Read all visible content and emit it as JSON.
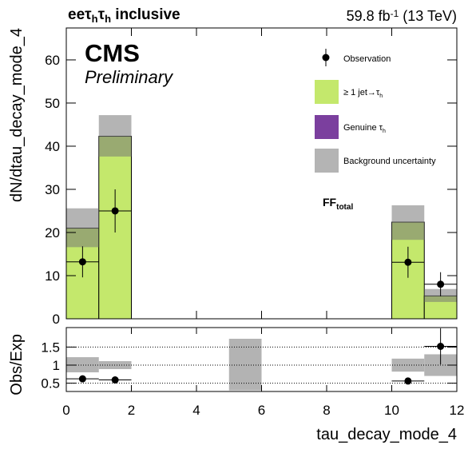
{
  "chart_data": [
    {
      "type": "histogram",
      "title": [
        "eeτ",
        "h",
        "τ",
        "h",
        " inclusive"
      ],
      "lumi": [
        "59.8 fb",
        "-1",
        " (13 TeV)"
      ],
      "logo": "CMS",
      "status": "Preliminary",
      "annotation": [
        "FF",
        "total"
      ],
      "ylabel": "dN/dtau_decay_mode_4",
      "bins": [
        0,
        1,
        2,
        3,
        4,
        5,
        6,
        7,
        8,
        9,
        10,
        11,
        12
      ],
      "ylim": [
        0,
        67.4
      ],
      "yticks": [
        0,
        10,
        20,
        30,
        40,
        50,
        60
      ],
      "series": [
        {
          "name": [
            "≥ 1 jet→τ",
            "h"
          ],
          "color": "#c4e86c",
          "values": [
            21,
            42.3,
            0,
            0,
            0,
            0,
            0,
            0,
            0,
            0,
            22.4,
            5.3
          ]
        },
        {
          "name": [
            "Genuine τ",
            "h"
          ],
          "color": "#7b3f9e",
          "values": [
            0,
            0,
            0,
            0,
            0,
            0,
            0,
            0,
            0,
            0,
            0,
            0
          ]
        }
      ],
      "uncertainty": {
        "name": "Background uncertainty",
        "color": "#777777",
        "low": [
          16.6,
          37.6,
          null,
          null,
          null,
          null,
          null,
          null,
          null,
          null,
          18.3,
          3.9
        ],
        "high": [
          25.6,
          47.2,
          null,
          null,
          null,
          null,
          null,
          null,
          null,
          null,
          26.3,
          6.9
        ]
      },
      "observation": {
        "name": "Observation",
        "color": "#000000",
        "values": [
          13.2,
          25,
          null,
          null,
          null,
          null,
          null,
          null,
          null,
          null,
          13.1,
          8
        ],
        "errors": [
          3.6,
          5,
          null,
          null,
          null,
          null,
          null,
          null,
          null,
          null,
          3.6,
          2.8
        ]
      }
    },
    {
      "type": "ratio",
      "ylabel": "Obs/Exp",
      "xlabel": "tau_decay_mode_4",
      "bins": [
        0,
        1,
        2,
        3,
        4,
        5,
        6,
        7,
        8,
        9,
        10,
        11,
        12
      ],
      "xlim": [
        0,
        12
      ],
      "xticks": [
        0,
        2,
        4,
        6,
        8,
        10,
        12
      ],
      "ylim": [
        0.27,
        2.04
      ],
      "yticks": [
        0.5,
        1,
        1.5
      ],
      "grid": true,
      "uncertainty": {
        "color": "#b3b3b3",
        "low": [
          0.8,
          0.89,
          null,
          null,
          null,
          0.3,
          null,
          null,
          null,
          null,
          0.82,
          0.7
        ],
        "high": [
          1.22,
          1.11,
          null,
          null,
          null,
          1.73,
          null,
          null,
          null,
          null,
          1.18,
          1.3
        ]
      },
      "observation": {
        "color": "#000000",
        "values": [
          0.62,
          0.59,
          null,
          null,
          null,
          null,
          null,
          null,
          null,
          null,
          0.56,
          1.52
        ],
        "errors": [
          0.06,
          0.04,
          null,
          null,
          null,
          null,
          null,
          null,
          null,
          null,
          0.06,
          0.5
        ]
      }
    }
  ]
}
